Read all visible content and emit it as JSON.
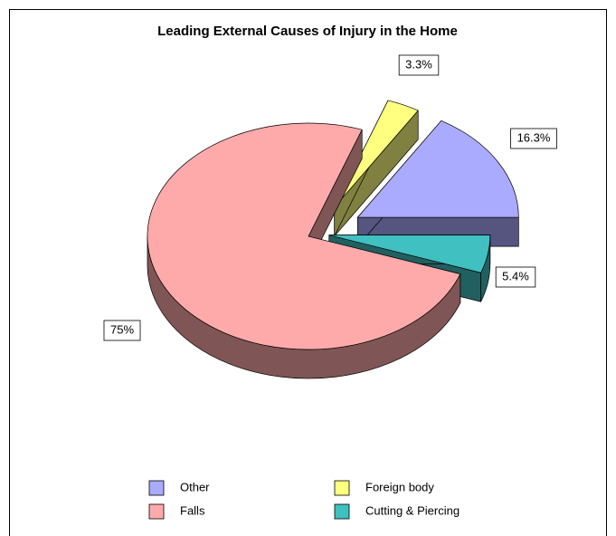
{
  "chart_data": {
    "type": "pie3d",
    "title": "Leading External Causes of Injury in the Home",
    "categories": [
      "Other",
      "Foreign body",
      "Falls",
      "Cutting & Piercing"
    ],
    "values": [
      16.3,
      3.3,
      75,
      5.4
    ],
    "value_labels": [
      "16.3%",
      "3.3%",
      "75%",
      "5.4%"
    ],
    "colors": [
      "#aaaaff",
      "#ffff80",
      "#ffaaaa",
      "#40c0c0"
    ],
    "legend": "bottom"
  }
}
